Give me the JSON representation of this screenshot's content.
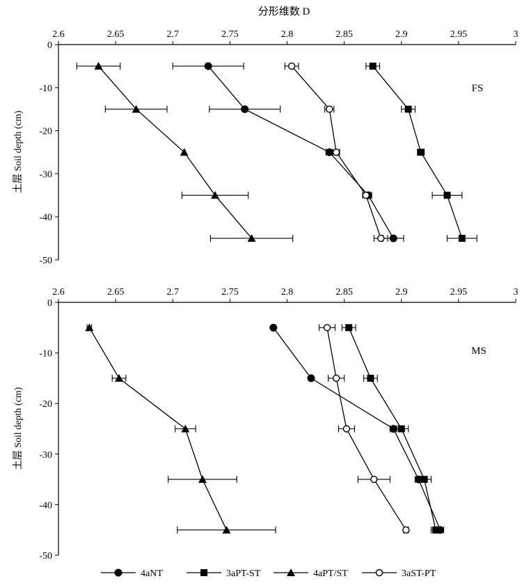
{
  "figure": {
    "top_axis_title": "分形维数 D",
    "y_axis_title": "土层 Soil depth (cm)"
  },
  "legend": [
    {
      "label": "4aNT",
      "marker": "circle-filled"
    },
    {
      "label": "3aPT-ST",
      "marker": "square-filled"
    },
    {
      "label": "4aPT/ST",
      "marker": "triangle-filled"
    },
    {
      "label": "3aST-PT",
      "marker": "circle-open"
    }
  ],
  "colors": {
    "ink": "#000000",
    "background": "#ffffff"
  },
  "chart_data": [
    {
      "type": "line",
      "panel_label": "FS",
      "xlabel": "分形维数 D",
      "ylabel": "土层 Soil depth (cm)",
      "xlim": [
        2.6,
        3.0
      ],
      "ylim": [
        -50,
        0
      ],
      "x_ticks": [
        "2.6",
        "2.65",
        "2.7",
        "2.75",
        "2.8",
        "2.85",
        "2.9",
        "2.95",
        "3"
      ],
      "y_ticks": [
        "0",
        "-10",
        "-20",
        "-30",
        "-40",
        "-50"
      ],
      "x_axis_position": "top",
      "grid": false,
      "series": [
        {
          "name": "4aNT",
          "marker": "circle-filled",
          "points": [
            {
              "x": 2.731,
              "y": -5
            },
            {
              "x": 2.763,
              "y": -15
            },
            {
              "x": 2.837,
              "y": -25
            },
            {
              "x": 2.871,
              "y": -35
            },
            {
              "x": 2.893,
              "y": -45
            }
          ],
          "x_err": [
            0.031,
            0.031,
            0.003,
            0.003,
            0.009
          ]
        },
        {
          "name": "3aPT-ST",
          "marker": "square-filled",
          "points": [
            {
              "x": 2.875,
              "y": -5
            },
            {
              "x": 2.906,
              "y": -15
            },
            {
              "x": 2.917,
              "y": -25
            },
            {
              "x": 2.94,
              "y": -35
            },
            {
              "x": 2.953,
              "y": -45
            }
          ],
          "x_err": [
            0.006,
            0.006,
            0.003,
            0.013,
            0.013
          ]
        },
        {
          "name": "4aPT/ST",
          "marker": "triangle-filled",
          "points": [
            {
              "x": 2.635,
              "y": -5
            },
            {
              "x": 2.668,
              "y": -15
            },
            {
              "x": 2.71,
              "y": -25
            },
            {
              "x": 2.737,
              "y": -35
            },
            {
              "x": 2.769,
              "y": -45
            }
          ],
          "x_err": [
            0.019,
            0.027,
            0.0,
            0.029,
            0.036
          ]
        },
        {
          "name": "3aST-PT",
          "marker": "circle-open",
          "points": [
            {
              "x": 2.804,
              "y": -5
            },
            {
              "x": 2.837,
              "y": -15
            },
            {
              "x": 2.843,
              "y": -25
            },
            {
              "x": 2.869,
              "y": -35
            },
            {
              "x": 2.882,
              "y": -45
            }
          ],
          "x_err": [
            0.006,
            0.004,
            0.003,
            0.003,
            0.006
          ]
        }
      ]
    },
    {
      "type": "line",
      "panel_label": "MS",
      "xlabel": "",
      "ylabel": "土层 Soil depth (cm)",
      "xlim": [
        2.6,
        3.0
      ],
      "ylim": [
        -50,
        0
      ],
      "x_ticks": [
        "2.6",
        "2.65",
        "2.7",
        "2.75",
        "2.8",
        "2.85",
        "2.9",
        "2.95",
        "3"
      ],
      "y_ticks": [
        "0",
        "-10",
        "-20",
        "-30",
        "-40",
        "-50"
      ],
      "x_axis_position": "top",
      "grid": false,
      "series": [
        {
          "name": "4aNT",
          "marker": "circle-filled",
          "points": [
            {
              "x": 2.788,
              "y": -5
            },
            {
              "x": 2.821,
              "y": -15
            },
            {
              "x": 2.893,
              "y": -25
            },
            {
              "x": 2.915,
              "y": -35
            },
            {
              "x": 2.934,
              "y": -45
            }
          ],
          "x_err": [
            0.0,
            0.0,
            0.003,
            0.003,
            0.003
          ]
        },
        {
          "name": "3aPT-ST",
          "marker": "square-filled",
          "points": [
            {
              "x": 2.854,
              "y": -5
            },
            {
              "x": 2.873,
              "y": -15
            },
            {
              "x": 2.9,
              "y": -25
            },
            {
              "x": 2.92,
              "y": -35
            },
            {
              "x": 2.93,
              "y": -45
            }
          ],
          "x_err": [
            0.006,
            0.006,
            0.006,
            0.006,
            0.004
          ]
        },
        {
          "name": "4aPT/ST",
          "marker": "triangle-filled",
          "points": [
            {
              "x": 2.627,
              "y": -5
            },
            {
              "x": 2.653,
              "y": -15
            },
            {
              "x": 2.711,
              "y": -25
            },
            {
              "x": 2.726,
              "y": -35
            },
            {
              "x": 2.747,
              "y": -45
            }
          ],
          "x_err": [
            0.002,
            0.006,
            0.009,
            0.03,
            0.043
          ]
        },
        {
          "name": "3aST-PT",
          "marker": "circle-open",
          "points": [
            {
              "x": 2.835,
              "y": -5
            },
            {
              "x": 2.843,
              "y": -15
            },
            {
              "x": 2.852,
              "y": -25
            },
            {
              "x": 2.876,
              "y": -35
            },
            {
              "x": 2.904,
              "y": -45
            }
          ],
          "x_err": [
            0.007,
            0.007,
            0.007,
            0.014,
            0.002
          ]
        }
      ]
    }
  ]
}
